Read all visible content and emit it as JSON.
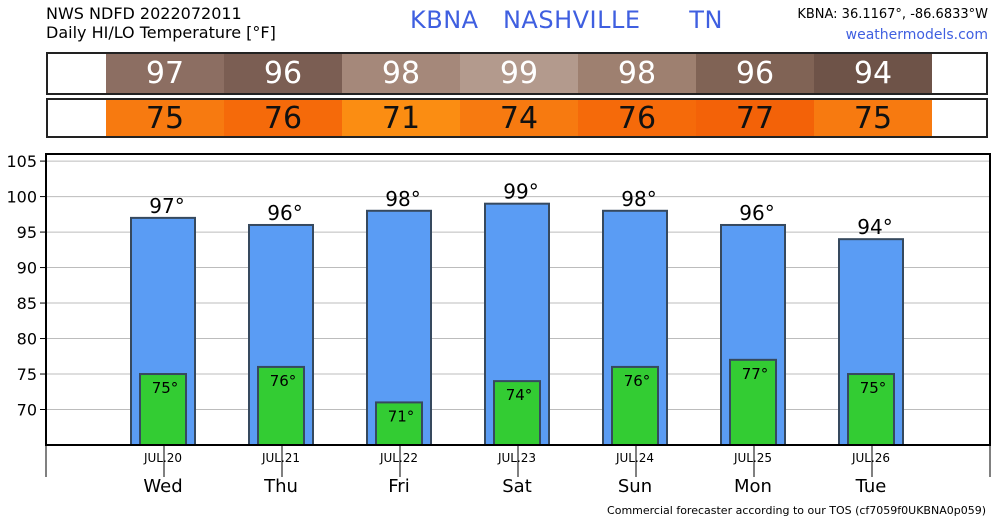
{
  "header": {
    "line1": "NWS NDFD 2022072011",
    "line2": "Daily HI/LO Temperature [°F]",
    "location": "KBNA   NASHVILLE      TN",
    "coords": "KBNA: 36.1167°, -86.6833°W",
    "site": "weathermodels.com"
  },
  "strip_colors": {
    "hi": [
      "#8c6e62",
      "#7b5e53",
      "#a5887a",
      "#b39a8d",
      "#9e8070",
      "#806355",
      "#6e5348"
    ],
    "lo": [
      "#f77a10",
      "#f56a0a",
      "#fb8d12",
      "#f77a10",
      "#f56a0a",
      "#f36208",
      "#f77a10"
    ]
  },
  "chart_data": {
    "type": "bar",
    "categories": [
      "Wed",
      "Thu",
      "Fri",
      "Sat",
      "Sun",
      "Mon",
      "Tue"
    ],
    "dates": [
      "JUL.20",
      "JUL.21",
      "JUL.22",
      "JUL.23",
      "JUL.24",
      "JUL.25",
      "JUL.26"
    ],
    "series": [
      {
        "values": [
          97,
          96,
          98,
          99,
          98,
          96,
          94
        ],
        "color": "#5a9cf4"
      },
      {
        "values": [
          75,
          76,
          71,
          74,
          76,
          77,
          75
        ],
        "color": "#33cc33"
      }
    ],
    "hi_labels": [
      "97°",
      "96°",
      "98°",
      "99°",
      "98°",
      "96°",
      "94°"
    ],
    "lo_labels": [
      "75°",
      "76°",
      "71°",
      "74°",
      "76°",
      "77°",
      "75°"
    ],
    "yticks": [
      70,
      75,
      80,
      85,
      90,
      95,
      100,
      105
    ],
    "ylim": [
      65,
      106
    ],
    "grid": true
  },
  "footer": "Commercial forecaster according to our TOS (cf7059f0UKBNA0p059)"
}
